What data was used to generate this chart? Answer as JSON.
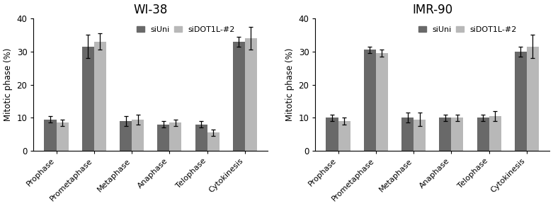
{
  "categories": [
    "Prophase",
    "Prometaphase",
    "Metaphase",
    "Anaphase",
    "Telophase",
    "Cytokinesis"
  ],
  "WI38": {
    "title": "WI-38",
    "siUni_values": [
      9.5,
      31.5,
      9.0,
      8.0,
      8.0,
      33.0
    ],
    "siDOT1L_values": [
      8.5,
      33.0,
      9.5,
      8.5,
      5.5,
      34.0
    ],
    "siUni_err": [
      1.0,
      3.5,
      1.5,
      1.0,
      1.0,
      1.5
    ],
    "siDOT1L_err": [
      1.0,
      2.5,
      1.5,
      1.0,
      1.0,
      3.5
    ]
  },
  "IMR90": {
    "title": "IMR-90",
    "siUni_values": [
      10.0,
      30.5,
      10.0,
      10.0,
      10.0,
      30.0
    ],
    "siDOT1L_values": [
      9.0,
      29.5,
      9.5,
      10.0,
      10.5,
      31.5
    ],
    "siUni_err": [
      1.0,
      1.0,
      1.5,
      1.0,
      1.0,
      1.5
    ],
    "siDOT1L_err": [
      1.0,
      1.0,
      2.0,
      1.0,
      1.5,
      3.5
    ]
  },
  "color_siUni": "#696969",
  "color_siDOT1L": "#b8b8b8",
  "ylabel": "Mitotic phase (%)",
  "ylim": [
    0,
    40
  ],
  "yticks": [
    0,
    10,
    20,
    30,
    40
  ],
  "legend_labels": [
    "siUni",
    "siDOT1L-#2"
  ],
  "bar_width": 0.32,
  "figsize": [
    7.81,
    2.91
  ],
  "dpi": 100
}
